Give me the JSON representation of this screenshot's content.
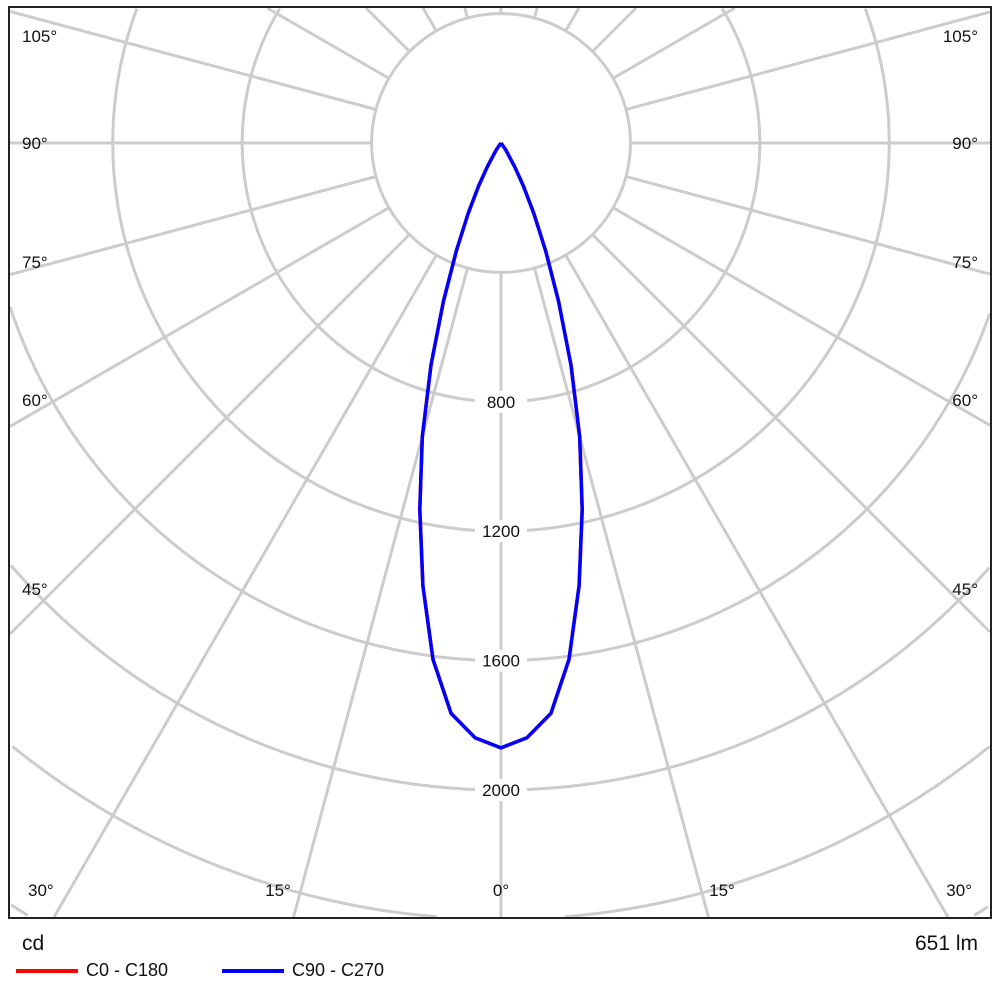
{
  "chart_data": {
    "type": "polar",
    "unit_label": "cd",
    "flux_label": "651 lm",
    "radial_ticks": [
      400,
      800,
      1200,
      1600,
      2000,
      2400,
      2800
    ],
    "radial_tick_labels": [
      "800",
      "1200",
      "1600",
      "2000"
    ],
    "angle_labels_left": [
      "105°",
      "90°",
      "75°",
      "60°",
      "45°",
      "30°"
    ],
    "angle_labels_right": [
      "105°",
      "90°",
      "75°",
      "60°",
      "45°",
      "30°"
    ],
    "angle_labels_bottom": [
      "15°",
      "0°",
      "15°"
    ],
    "angle_step_deg": 15,
    "grid": true,
    "legend_placement": "bottom-left",
    "gamma": [
      0,
      2.5,
      5,
      7.5,
      10,
      12.5,
      15,
      17.5,
      20,
      22.5,
      25,
      27.5,
      30,
      35,
      40,
      45,
      60,
      75,
      90
    ],
    "series": [
      {
        "name": "C0 - C180",
        "color": "#ff0000",
        "values": [
          1870,
          1840,
          1770,
          1610,
          1390,
          1160,
          940,
          720,
          520,
          360,
          240,
          150,
          85,
          25,
          0,
          0,
          0,
          0,
          0
        ]
      },
      {
        "name": "C90 - C270",
        "color": "#0000ff",
        "values": [
          1870,
          1840,
          1770,
          1610,
          1390,
          1160,
          940,
          720,
          520,
          360,
          240,
          150,
          85,
          25,
          0,
          0,
          0,
          0,
          0
        ]
      }
    ]
  }
}
